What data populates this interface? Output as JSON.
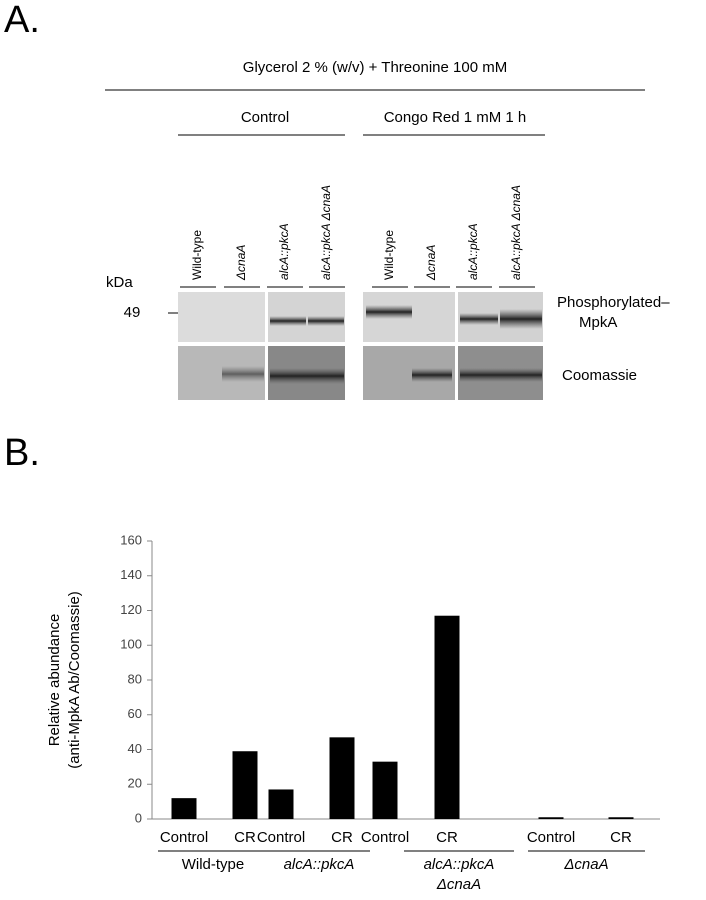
{
  "panel_a": {
    "label": "A.",
    "condition": "Glycerol 2 % (w/v) + Threonine 100 mM",
    "groups": [
      "Control",
      "Congo Red 1 mM 1 h"
    ],
    "lanes": [
      "Wild-type",
      "ΔcnaA",
      "alcA::pkcA",
      "alcA::pkcA ΔcnaA",
      "Wild-type",
      "ΔcnaA",
      "alcA::pkcA",
      "alcA::pkcA ΔcnaA"
    ],
    "marker_unit": "kDa",
    "marker": "49",
    "rows": [
      [
        "Phosphorylated–",
        "MpkA"
      ],
      [
        "Coomassie"
      ]
    ]
  },
  "panel_b": {
    "label": "B."
  },
  "chart_data": {
    "type": "bar",
    "ylabel": [
      "Relative abundance",
      "(anti-MpkA Ab/Coomassie)"
    ],
    "categories": [
      "Control",
      "CR",
      "Control",
      "CR",
      "Control",
      "CR",
      "Control",
      "CR"
    ],
    "groups": [
      [
        "Wild-type"
      ],
      [
        "alcA::pkcA"
      ],
      [
        "alcA::pkcA",
        "ΔcnaA"
      ],
      [
        "ΔcnaA"
      ]
    ],
    "values": [
      12,
      39,
      17,
      47,
      33,
      117,
      1,
      1
    ],
    "color": "#000000",
    "ylim": [
      0,
      160
    ],
    "yticks": [
      0,
      20,
      40,
      60,
      80,
      100,
      120,
      140,
      160
    ]
  }
}
